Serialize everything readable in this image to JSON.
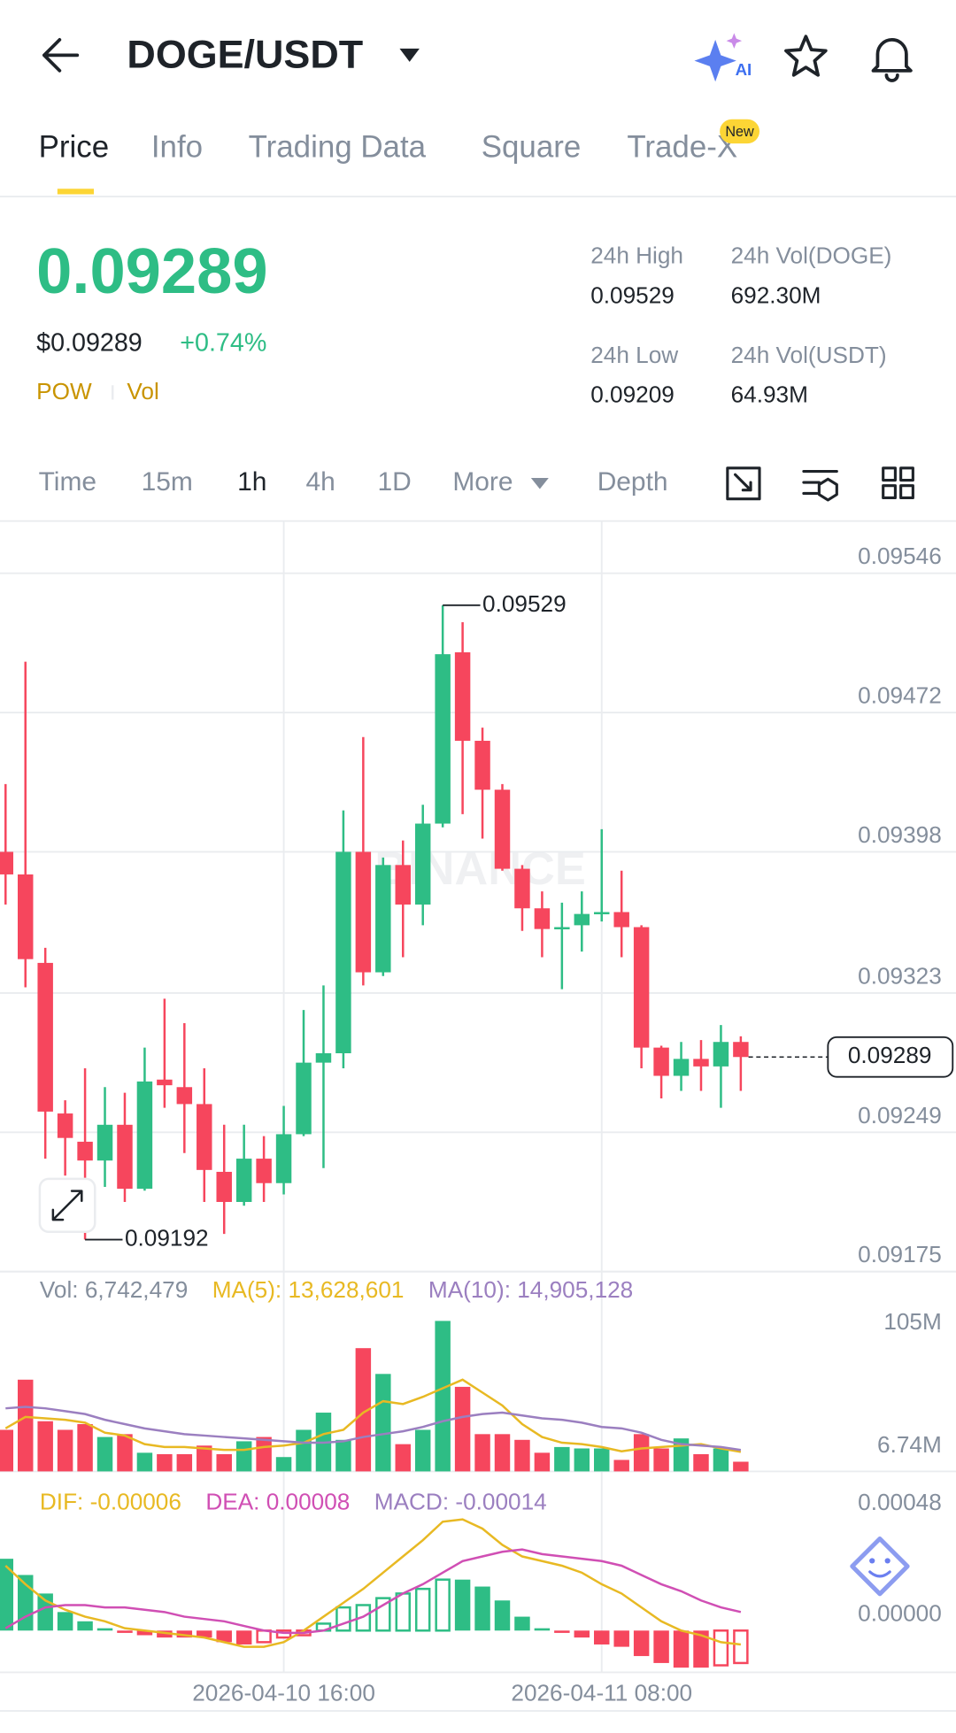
{
  "header": {
    "title": "DOGE/USDT",
    "ai_icon": "AI"
  },
  "tabs": [
    "Price",
    "Info",
    "Trading Data",
    "Square",
    "Trade-X"
  ],
  "tab_badge": "New",
  "ticker": {
    "last": "0.09289",
    "usd": "$0.09289",
    "change": "+0.74%",
    "tags": [
      "POW",
      "Vol"
    ],
    "stats": [
      {
        "label": "24h High",
        "value": "0.09529"
      },
      {
        "label": "24h Vol(DOGE)",
        "value": "692.30M"
      },
      {
        "label": "24h Low",
        "value": "0.09209"
      },
      {
        "label": "24h Vol(USDT)",
        "value": "64.93M"
      }
    ]
  },
  "intervals": [
    "Time",
    "15m",
    "1h",
    "4h",
    "1D",
    "More",
    "Depth"
  ],
  "chart_data": [
    {
      "type": "candlestick",
      "up_color": "#2ebd85",
      "down_color": "#f6465d",
      "watermark": "BINANCE",
      "open": [
        0.09398,
        0.09386,
        0.09339,
        0.09259,
        0.09244,
        0.09234,
        0.09253,
        0.09219,
        0.09277,
        0.09273,
        0.09264,
        0.09228,
        0.09212,
        0.09235,
        0.09222,
        0.09248,
        0.09286,
        0.09291,
        0.09398,
        0.09334,
        0.09391,
        0.0937,
        0.09413,
        0.09504,
        0.09457,
        0.09431,
        0.09389,
        0.09368,
        0.09357,
        0.09359,
        0.09365,
        0.09366,
        0.09358,
        0.09294,
        0.09279,
        0.09288,
        0.09284,
        0.09297
      ],
      "high": [
        0.09434,
        0.09499,
        0.09347,
        0.09266,
        0.09283,
        0.09273,
        0.0927,
        0.09294,
        0.0932,
        0.09307,
        0.09283,
        0.09253,
        0.09253,
        0.09247,
        0.09263,
        0.09314,
        0.09327,
        0.0942,
        0.09459,
        0.09395,
        0.09404,
        0.09423,
        0.09529,
        0.0952,
        0.09464,
        0.09434,
        0.09391,
        0.09377,
        0.09371,
        0.09377,
        0.0941,
        0.09388,
        0.09359,
        0.09295,
        0.09297,
        0.09298,
        0.09306,
        0.093
      ],
      "low": [
        0.0937,
        0.09326,
        0.09235,
        0.09226,
        0.09192,
        0.0922,
        0.09212,
        0.09218,
        0.09262,
        0.09238,
        0.09212,
        0.09195,
        0.0921,
        0.09212,
        0.09216,
        0.09247,
        0.0923,
        0.09283,
        0.09327,
        0.09332,
        0.09342,
        0.09359,
        0.09411,
        0.09418,
        0.09405,
        0.09388,
        0.09356,
        0.09342,
        0.09325,
        0.09345,
        0.09361,
        0.09342,
        0.09283,
        0.09267,
        0.09271,
        0.09271,
        0.09262,
        0.09271
      ],
      "close": [
        0.09386,
        0.09341,
        0.0926,
        0.09246,
        0.09234,
        0.09253,
        0.09219,
        0.09276,
        0.09274,
        0.09264,
        0.09229,
        0.09212,
        0.09235,
        0.09222,
        0.09248,
        0.09286,
        0.09291,
        0.09398,
        0.09334,
        0.09391,
        0.0937,
        0.09413,
        0.09503,
        0.09457,
        0.09431,
        0.09389,
        0.09368,
        0.09357,
        0.09358,
        0.09365,
        0.09366,
        0.09358,
        0.09294,
        0.09279,
        0.09288,
        0.09284,
        0.09297,
        0.09289
      ],
      "xlim": [
        -0.28,
        47.83
      ],
      "xticks": [
        {
          "value": 14,
          "label": "2026-04-10 16:00"
        },
        {
          "value": 30,
          "label": "2026-04-11 08:00"
        }
      ],
      "ylim": [
        0.09175,
        0.09572
      ],
      "yticks": [
        0.09546,
        0.09472,
        0.09398,
        0.09323,
        0.09249,
        0.09175
      ],
      "grid": true,
      "annotations": {
        "high": "0.09529",
        "low": "0.09192",
        "last": "0.09289"
      }
    },
    {
      "type": "volume",
      "ylim": [
        0,
        114000000
      ],
      "yticks": [
        {
          "value": 105000000,
          "label": "105M"
        },
        {
          "value": 6740000,
          "label": "6.74M"
        }
      ],
      "series": [
        {
          "name": "Vol: 6,742,479",
          "type": "bar",
          "color": "#848e9c",
          "values": [
            29000000,
            64000000,
            35000000,
            29000000,
            33000000,
            24000000,
            26000000,
            13000000,
            12000000,
            12000000,
            18000000,
            12000000,
            21000000,
            24000000,
            10000000,
            29000000,
            41000000,
            22000000,
            86000000,
            68000000,
            19000000,
            29000000,
            105000000,
            59000000,
            26000000,
            26000000,
            22000000,
            13000000,
            17000000,
            16000000,
            16000000,
            8000000,
            26000000,
            16000000,
            23000000,
            12000000,
            16000000,
            6742479
          ]
        },
        {
          "name": "MA(5): 13,628,601",
          "type": "line",
          "color": "#e8b923",
          "values": [
            30000000,
            38000000,
            37000000,
            36000000,
            34000000,
            27000000,
            25000000,
            19000000,
            17000000,
            17000000,
            16000000,
            15000000,
            15000000,
            17000000,
            18000000,
            20000000,
            26000000,
            29000000,
            41000000,
            49000000,
            47000000,
            52000000,
            58000000,
            64000000,
            55000000,
            46000000,
            33000000,
            24000000,
            20000000,
            19000000,
            17000000,
            14000000,
            16000000,
            17000000,
            18000000,
            19000000,
            16000000,
            13628601
          ]
        },
        {
          "name": "MA(10): 14,905,128",
          "type": "line",
          "color": "#9b7fc0",
          "values": [
            44000000,
            45000000,
            44000000,
            42000000,
            40000000,
            36000000,
            33000000,
            30000000,
            28000000,
            26000000,
            25000000,
            24000000,
            23000000,
            22000000,
            21000000,
            20000000,
            20000000,
            21000000,
            24000000,
            26000000,
            28000000,
            31000000,
            35000000,
            38000000,
            40000000,
            41000000,
            39000000,
            37000000,
            36000000,
            34000000,
            31000000,
            30000000,
            27000000,
            22000000,
            19000000,
            18000000,
            17000000,
            14905128
          ]
        }
      ]
    },
    {
      "type": "macd",
      "ylim": [
        -0.00018,
        0.00063
      ],
      "yticks": [
        0.00048,
        {
          "value": 0,
          "label": "0.00000"
        }
      ],
      "series": [
        {
          "name": "DIF: -0.00006",
          "type": "line",
          "color": "#e8b923",
          "values": [
            0.00028,
            0.0002,
            0.00013,
            9e-05,
            6e-05,
            4e-05,
            1e-05,
            0,
            -1e-05,
            -2e-05,
            -3e-05,
            -5e-05,
            -7e-05,
            -7e-05,
            -5e-05,
            0,
            6e-05,
            0.00012,
            0.00018,
            0.00025,
            0.00032,
            0.00039,
            0.00047,
            0.00048,
            0.00044,
            0.00037,
            0.00032,
            0.0003,
            0.00028,
            0.00025,
            0.0002,
            0.00016,
            0.0001,
            4e-05,
            0,
            -2e-05,
            -5e-05,
            -6e-05
          ]
        },
        {
          "name": "DEA: 0.00008",
          "type": "line",
          "color": "#d04fb4",
          "values": [
            1e-05,
            6e-05,
            0.0001,
            0.00011,
            0.00011,
            0.0001,
            0.0001,
            9e-05,
            8e-05,
            6e-05,
            5e-05,
            4e-05,
            2e-05,
            0,
            -1e-05,
            -1e-05,
            0,
            3e-05,
            6e-05,
            0.00011,
            0.00016,
            0.0002,
            0.00025,
            0.0003,
            0.00032,
            0.00034,
            0.00035,
            0.00033,
            0.00032,
            0.00031,
            0.0003,
            0.00028,
            0.00024,
            0.0002,
            0.00017,
            0.00013,
            0.0001,
            8e-05
          ]
        },
        {
          "name": "MACD: -0.00014",
          "type": "bar",
          "color": "#9b7fc0",
          "values": [
            0.00031,
            0.00024,
            0.00016,
            8e-05,
            4e-05,
            1e-05,
            -1e-05,
            -2e-05,
            -3e-05,
            -3e-05,
            -3e-05,
            -5e-05,
            -6e-05,
            -5e-05,
            -3e-05,
            -2e-05,
            3e-05,
            0.0001,
            0.00011,
            0.00014,
            0.00016,
            0.00018,
            0.00022,
            0.00022,
            0.00019,
            0.00013,
            6e-05,
            1e-05,
            -1e-05,
            -3e-05,
            -6e-05,
            -7e-05,
            -0.00011,
            -0.00014,
            -0.00016,
            -0.00016,
            -0.00015,
            -0.00014
          ]
        }
      ]
    }
  ]
}
